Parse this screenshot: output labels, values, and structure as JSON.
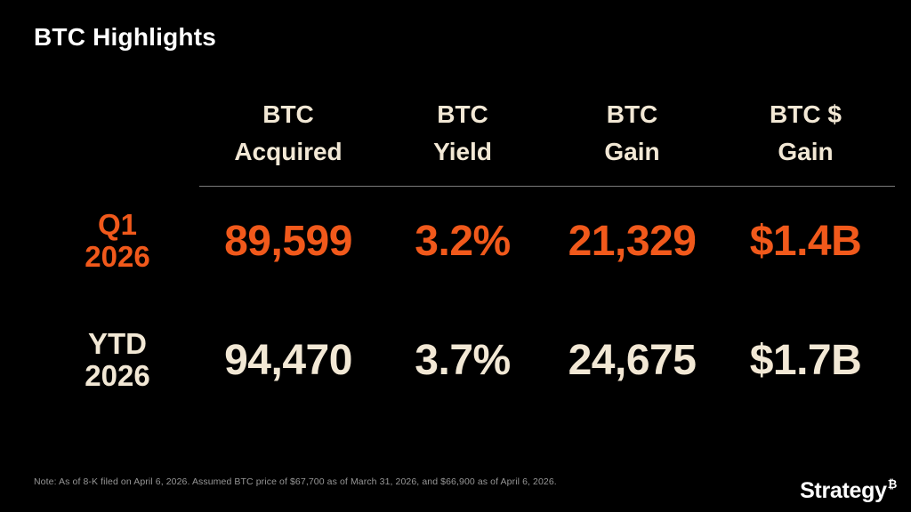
{
  "slide": {
    "title": "BTC Highlights"
  },
  "table": {
    "columns": [
      {
        "line1": "BTC",
        "line2": "Acquired"
      },
      {
        "line1": "BTC",
        "line2": "Yield"
      },
      {
        "line1": "BTC",
        "line2": "Gain"
      },
      {
        "line1": "BTC $",
        "line2": "Gain"
      }
    ],
    "rows": [
      {
        "label_line1": "Q1",
        "label_line2": "2026",
        "btc_acquired": "89,599",
        "btc_yield": "3.2%",
        "btc_gain": "21,329",
        "btc_dollar_gain": "$1.4B",
        "emphasis": "orange"
      },
      {
        "label_line1": "YTD",
        "label_line2": "2026",
        "btc_acquired": "94,470",
        "btc_yield": "3.7%",
        "btc_gain": "24,675",
        "btc_dollar_gain": "$1.7B",
        "emphasis": "cream"
      }
    ]
  },
  "footnote": "Note: As of 8-K filed on April 6, 2026. Assumed BTC price of $67,700 as of March 31, 2026, and $66,900 as of April 6, 2026.",
  "logo": {
    "name": "Strategy",
    "symbol": "₿"
  },
  "colors": {
    "bg": "#000000",
    "orange": "#F1591B",
    "cream": "#F2E8D5",
    "title": "#FFFFFF",
    "divider": "#7A7A7A",
    "footnote": "#969696"
  }
}
